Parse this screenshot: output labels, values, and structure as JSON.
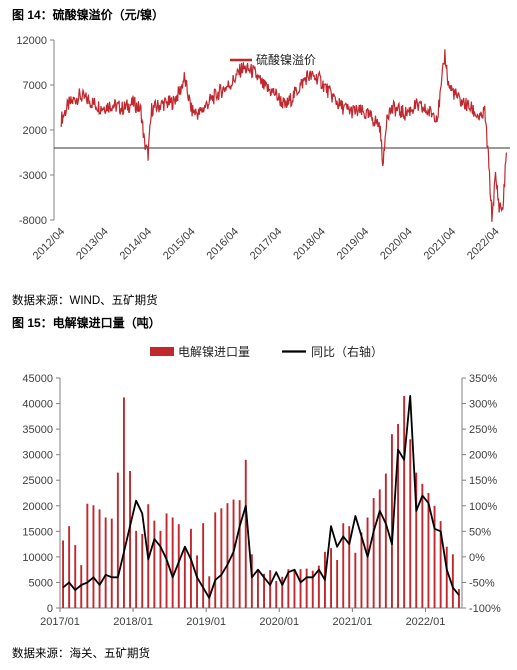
{
  "figure14": {
    "caption": "图 14：硫酸镍溢价（元/镍）",
    "source": "数据来源：WIND、五矿期货",
    "legend": "硫酸镍溢价"
  },
  "figure15": {
    "caption": "图 15：电解镍进口量（吨）",
    "source": "数据来源：海关、五矿期货",
    "legend_bar": "电解镍进口量",
    "legend_line": "同比（右轴）"
  },
  "colors": {
    "bar": "#c0282e",
    "line": "#000000",
    "premium": "#c0282e",
    "axis": "#808080"
  },
  "chart_data": [
    {
      "type": "line",
      "title": "硫酸镍溢价（元/镍）",
      "series": [
        {
          "name": "硫酸镍溢价",
          "points": [
            [
              "2012/04",
              3200
            ],
            [
              "2012/06",
              4800
            ],
            [
              "2012/09",
              5800
            ],
            [
              "2012/12",
              5200
            ],
            [
              "2013/03",
              4500
            ],
            [
              "2013/06",
              4800
            ],
            [
              "2013/09",
              4400
            ],
            [
              "2013/12",
              5000
            ],
            [
              "2014/02",
              4200
            ],
            [
              "2014/03",
              500
            ],
            [
              "2014/04",
              -700
            ],
            [
              "2014/05",
              4300
            ],
            [
              "2014/08",
              4900
            ],
            [
              "2014/11",
              5100
            ],
            [
              "2015/01",
              6500
            ],
            [
              "2015/02",
              7800
            ],
            [
              "2015/04",
              4200
            ],
            [
              "2015/06",
              3800
            ],
            [
              "2015/09",
              5200
            ],
            [
              "2015/12",
              6300
            ],
            [
              "2016/03",
              7200
            ],
            [
              "2016/06",
              8900
            ],
            [
              "2016/09",
              8500
            ],
            [
              "2016/12",
              6800
            ],
            [
              "2017/03",
              6100
            ],
            [
              "2017/06",
              4600
            ],
            [
              "2017/09",
              6300
            ],
            [
              "2017/12",
              8000
            ],
            [
              "2018/03",
              7800
            ],
            [
              "2018/06",
              6200
            ],
            [
              "2018/09",
              4700
            ],
            [
              "2018/12",
              4100
            ],
            [
              "2019/03",
              4000
            ],
            [
              "2019/06",
              3300
            ],
            [
              "2019/08",
              2500
            ],
            [
              "2019/09",
              -2000
            ],
            [
              "2019/10",
              3900
            ],
            [
              "2019/12",
              4400
            ],
            [
              "2020/03",
              3800
            ],
            [
              "2020/06",
              4700
            ],
            [
              "2020/09",
              4100
            ],
            [
              "2020/12",
              3600
            ],
            [
              "2021/01",
              6600
            ],
            [
              "2021/02",
              10500
            ],
            [
              "2021/03",
              7000
            ],
            [
              "2021/06",
              5300
            ],
            [
              "2021/09",
              4500
            ],
            [
              "2021/12",
              3200
            ],
            [
              "2022/01",
              4200
            ],
            [
              "2022/02",
              -1000
            ],
            [
              "2022/03",
              -7700
            ],
            [
              "2022/04",
              -3200
            ],
            [
              "2022/05",
              -6400
            ],
            [
              "2022/06",
              -6800
            ],
            [
              "2022/07",
              -500
            ]
          ]
        }
      ],
      "x_ticks": [
        "2012/04",
        "2013/04",
        "2014/04",
        "2015/04",
        "2016/04",
        "2017/04",
        "2018/04",
        "2019/04",
        "2020/04",
        "2021/04",
        "2022/04"
      ],
      "y_ticks": [
        12000,
        7000,
        2000,
        -3000,
        -8000
      ],
      "ylim": [
        -8000,
        12000
      ],
      "grid": false,
      "legend": "top-center"
    },
    {
      "type": "bar",
      "title": "电解镍进口量（吨）",
      "categories": [
        "2017/01",
        "2017/02",
        "2017/03",
        "2017/04",
        "2017/05",
        "2017/06",
        "2017/07",
        "2017/08",
        "2017/09",
        "2017/10",
        "2017/11",
        "2017/12",
        "2018/01",
        "2018/02",
        "2018/03",
        "2018/04",
        "2018/05",
        "2018/06",
        "2018/07",
        "2018/08",
        "2018/09",
        "2018/10",
        "2018/11",
        "2018/12",
        "2019/01",
        "2019/02",
        "2019/03",
        "2019/04",
        "2019/05",
        "2019/06",
        "2019/07",
        "2019/08",
        "2019/09",
        "2019/10",
        "2019/11",
        "2019/12",
        "2020/01",
        "2020/02",
        "2020/03",
        "2020/04",
        "2020/05",
        "2020/06",
        "2020/07",
        "2020/08",
        "2020/09",
        "2020/10",
        "2020/11",
        "2020/12",
        "2021/01",
        "2021/02",
        "2021/03",
        "2021/04",
        "2021/05",
        "2021/06",
        "2021/07",
        "2021/08",
        "2021/09",
        "2021/10",
        "2021/11",
        "2021/12",
        "2022/01",
        "2022/02",
        "2022/03",
        "2022/04",
        "2022/05",
        "2022/06"
      ],
      "series": [
        {
          "name": "电解镍进口量",
          "axis": "left",
          "values": [
            13200,
            16000,
            12300,
            8400,
            20400,
            20100,
            19300,
            17700,
            17500,
            26500,
            41200,
            26800,
            15100,
            14500,
            20300,
            17100,
            15100,
            18500,
            17700,
            16400,
            11600,
            15500,
            10300,
            16600,
            6200,
            18700,
            19500,
            20500,
            21200,
            21100,
            29000,
            10500,
            7300,
            6700,
            7400,
            5300,
            6100,
            7600,
            7500,
            7600,
            7700,
            7300,
            8300,
            11000,
            11700,
            9400,
            16600,
            16000,
            10800,
            14800,
            17700,
            21500,
            23200,
            26300,
            34000,
            36000,
            41500,
            33000,
            26500,
            24300,
            22500,
            20000,
            17000,
            12000,
            10500,
            3700
          ]
        },
        {
          "name": "同比（右轴）",
          "axis": "right",
          "values": [
            -60,
            -50,
            -65,
            -55,
            -50,
            -40,
            -55,
            -35,
            -40,
            -40,
            10,
            60,
            110,
            85,
            -5,
            35,
            20,
            -5,
            -40,
            -10,
            20,
            -5,
            -40,
            -60,
            -80,
            -45,
            -35,
            -15,
            10,
            60,
            100,
            -40,
            -25,
            -40,
            -55,
            -30,
            -55,
            -30,
            -25,
            -50,
            -40,
            -40,
            -25,
            -45,
            60,
            20,
            40,
            25,
            80,
            40,
            0,
            50,
            90,
            65,
            25,
            210,
            190,
            315,
            90,
            120,
            105,
            55,
            50,
            -25,
            -60,
            -75
          ]
        }
      ],
      "x_ticks": [
        "2017/01",
        "2018/01",
        "2019/01",
        "2020/01",
        "2021/01",
        "2022/01"
      ],
      "y_ticks_left": [
        0,
        5000,
        10000,
        15000,
        20000,
        25000,
        30000,
        35000,
        40000,
        45000
      ],
      "y_ticks_right": [
        "-100%",
        "-50%",
        "0%",
        "50%",
        "100%",
        "150%",
        "200%",
        "250%",
        "300%",
        "350%"
      ],
      "ylim_left": [
        0,
        45000
      ],
      "ylim_right": [
        -100,
        350
      ],
      "grid": false,
      "legend": "top-center"
    }
  ]
}
